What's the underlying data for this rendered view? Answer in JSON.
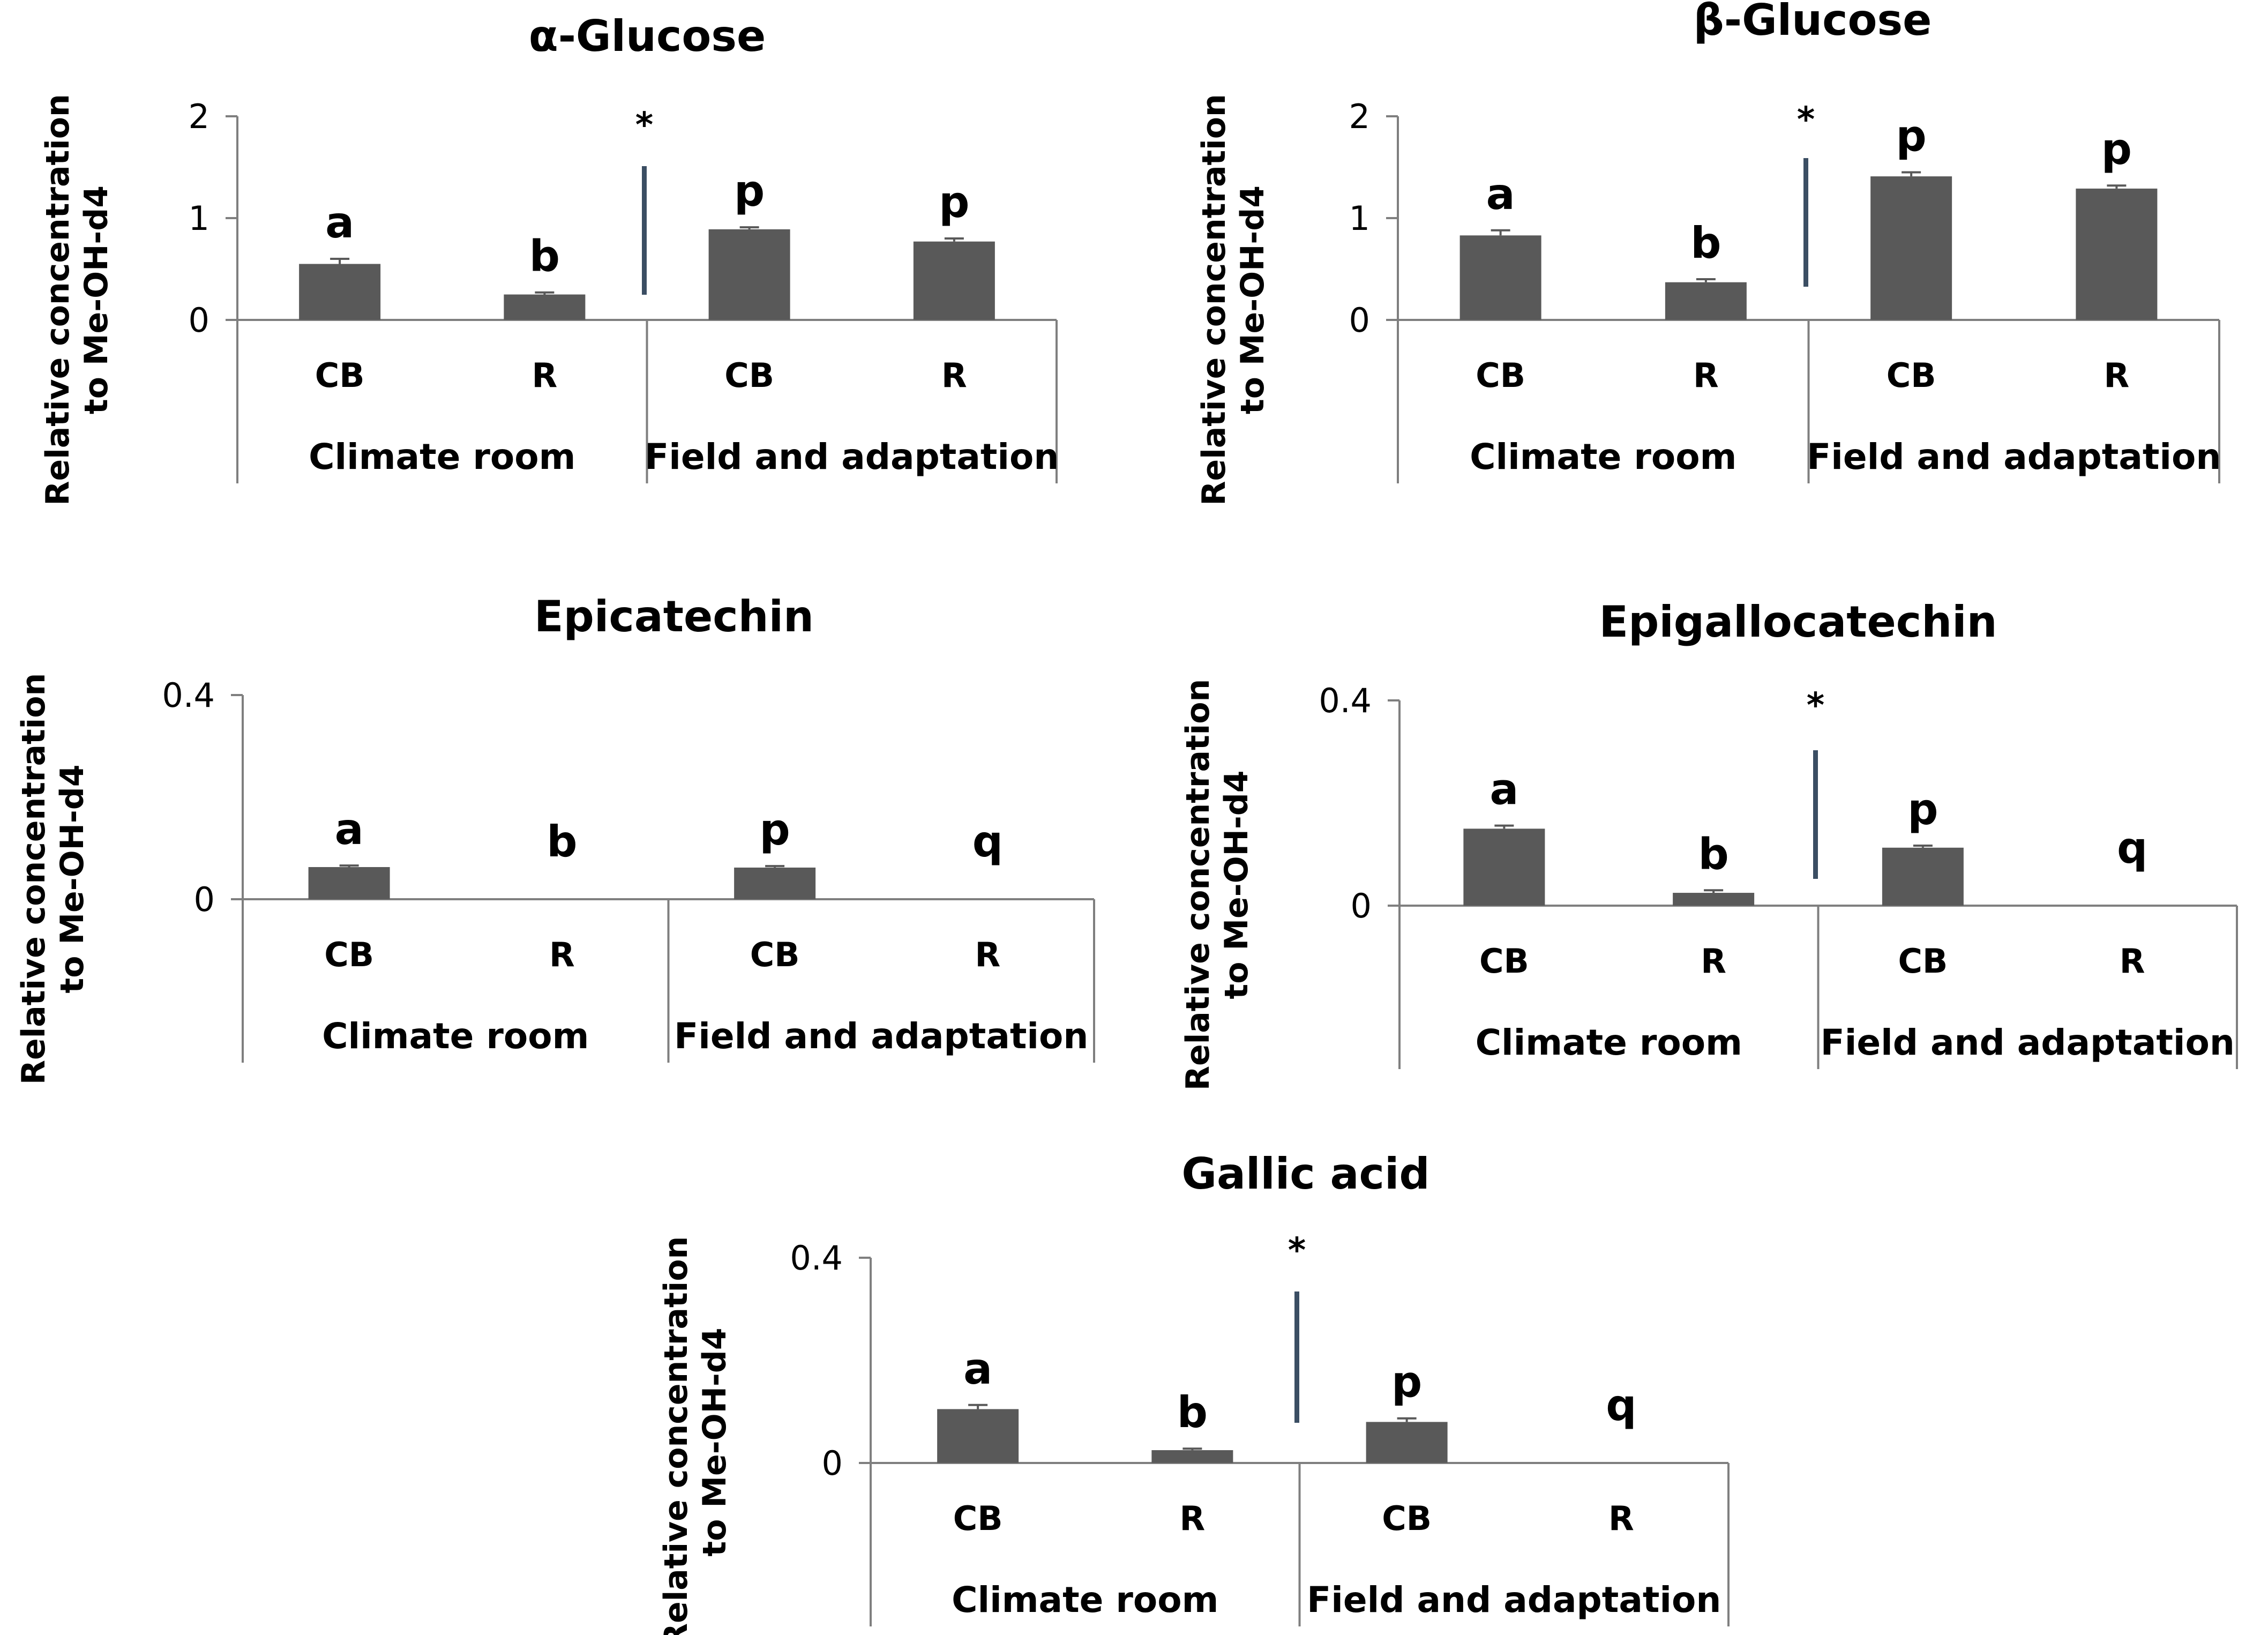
{
  "y_axis_label_line1": "Relative concentration",
  "y_axis_label_line2": "to Me-OH-d4",
  "group_labels": [
    "Climate room",
    "Field and adaptation"
  ],
  "colors": {
    "bar": "#595959",
    "axis": "#7f7f7f",
    "divider": "#3b4e63",
    "text": "#000000"
  },
  "chart_data": [
    {
      "type": "bar",
      "title": "α-Glucose",
      "ylabel": "Relative concentration to Me-OH-d4",
      "ylim": [
        0,
        2
      ],
      "yticks": [
        "0",
        "1",
        "2"
      ],
      "grid": false,
      "categories": [
        "CB",
        "R",
        "CB",
        "R"
      ],
      "groups": [
        "Climate room",
        "Field and adaptation"
      ],
      "values": [
        0.55,
        0.25,
        0.89,
        0.77
      ],
      "errors": [
        0.05,
        0.02,
        0.02,
        0.03
      ],
      "letters": [
        "a",
        "b",
        "p",
        "p"
      ],
      "significance": "*"
    },
    {
      "type": "bar",
      "title": "β-Glucose",
      "ylabel": "Relative concentration to Me-OH-d4",
      "ylim": [
        0,
        2
      ],
      "yticks": [
        "0",
        "1",
        "2"
      ],
      "grid": false,
      "categories": [
        "CB",
        "R",
        "CB",
        "R"
      ],
      "groups": [
        "Climate room",
        "Field and adaptation"
      ],
      "values": [
        0.83,
        0.37,
        1.41,
        1.29
      ],
      "errors": [
        0.05,
        0.03,
        0.04,
        0.03
      ],
      "letters": [
        "a",
        "b",
        "p",
        "p"
      ],
      "significance": "*"
    },
    {
      "type": "bar",
      "title": "Epicatechin",
      "ylabel": "Relative concentration to Me-OH-d4",
      "ylim": [
        0,
        0.4
      ],
      "yticks": [
        "0",
        "0.4"
      ],
      "grid": false,
      "categories": [
        "CB",
        "R",
        "CB",
        "R"
      ],
      "groups": [
        "Climate room",
        "Field and adaptation"
      ],
      "values": [
        0.063,
        0,
        0.062,
        0
      ],
      "errors": [
        0.003,
        0,
        0.003,
        0
      ],
      "letters": [
        "a",
        "b",
        "p",
        "q"
      ],
      "significance": ""
    },
    {
      "type": "bar",
      "title": "Epigallocatechin",
      "ylabel": "Relative concentration to Me-OH-d4",
      "ylim": [
        0,
        0.4
      ],
      "yticks": [
        "0",
        "0.4"
      ],
      "grid": false,
      "categories": [
        "CB",
        "R",
        "CB",
        "R"
      ],
      "groups": [
        "Climate room",
        "Field and adaptation"
      ],
      "values": [
        0.15,
        0.025,
        0.113,
        0
      ],
      "errors": [
        0.006,
        0.005,
        0.004,
        0
      ],
      "letters": [
        "a",
        "b",
        "p",
        "q"
      ],
      "significance": "*"
    },
    {
      "type": "bar",
      "title": "Gallic acid",
      "ylabel": "Relative concentration to Me-OH-d4",
      "ylim": [
        0,
        0.4
      ],
      "yticks": [
        "0",
        "0.4"
      ],
      "grid": false,
      "categories": [
        "CB",
        "R",
        "CB",
        "R"
      ],
      "groups": [
        "Climate room",
        "Field and adaptation"
      ],
      "values": [
        0.105,
        0.025,
        0.08,
        0
      ],
      "errors": [
        0.008,
        0.003,
        0.007,
        0
      ],
      "letters": [
        "a",
        "b",
        "p",
        "q"
      ],
      "significance": "*"
    }
  ]
}
